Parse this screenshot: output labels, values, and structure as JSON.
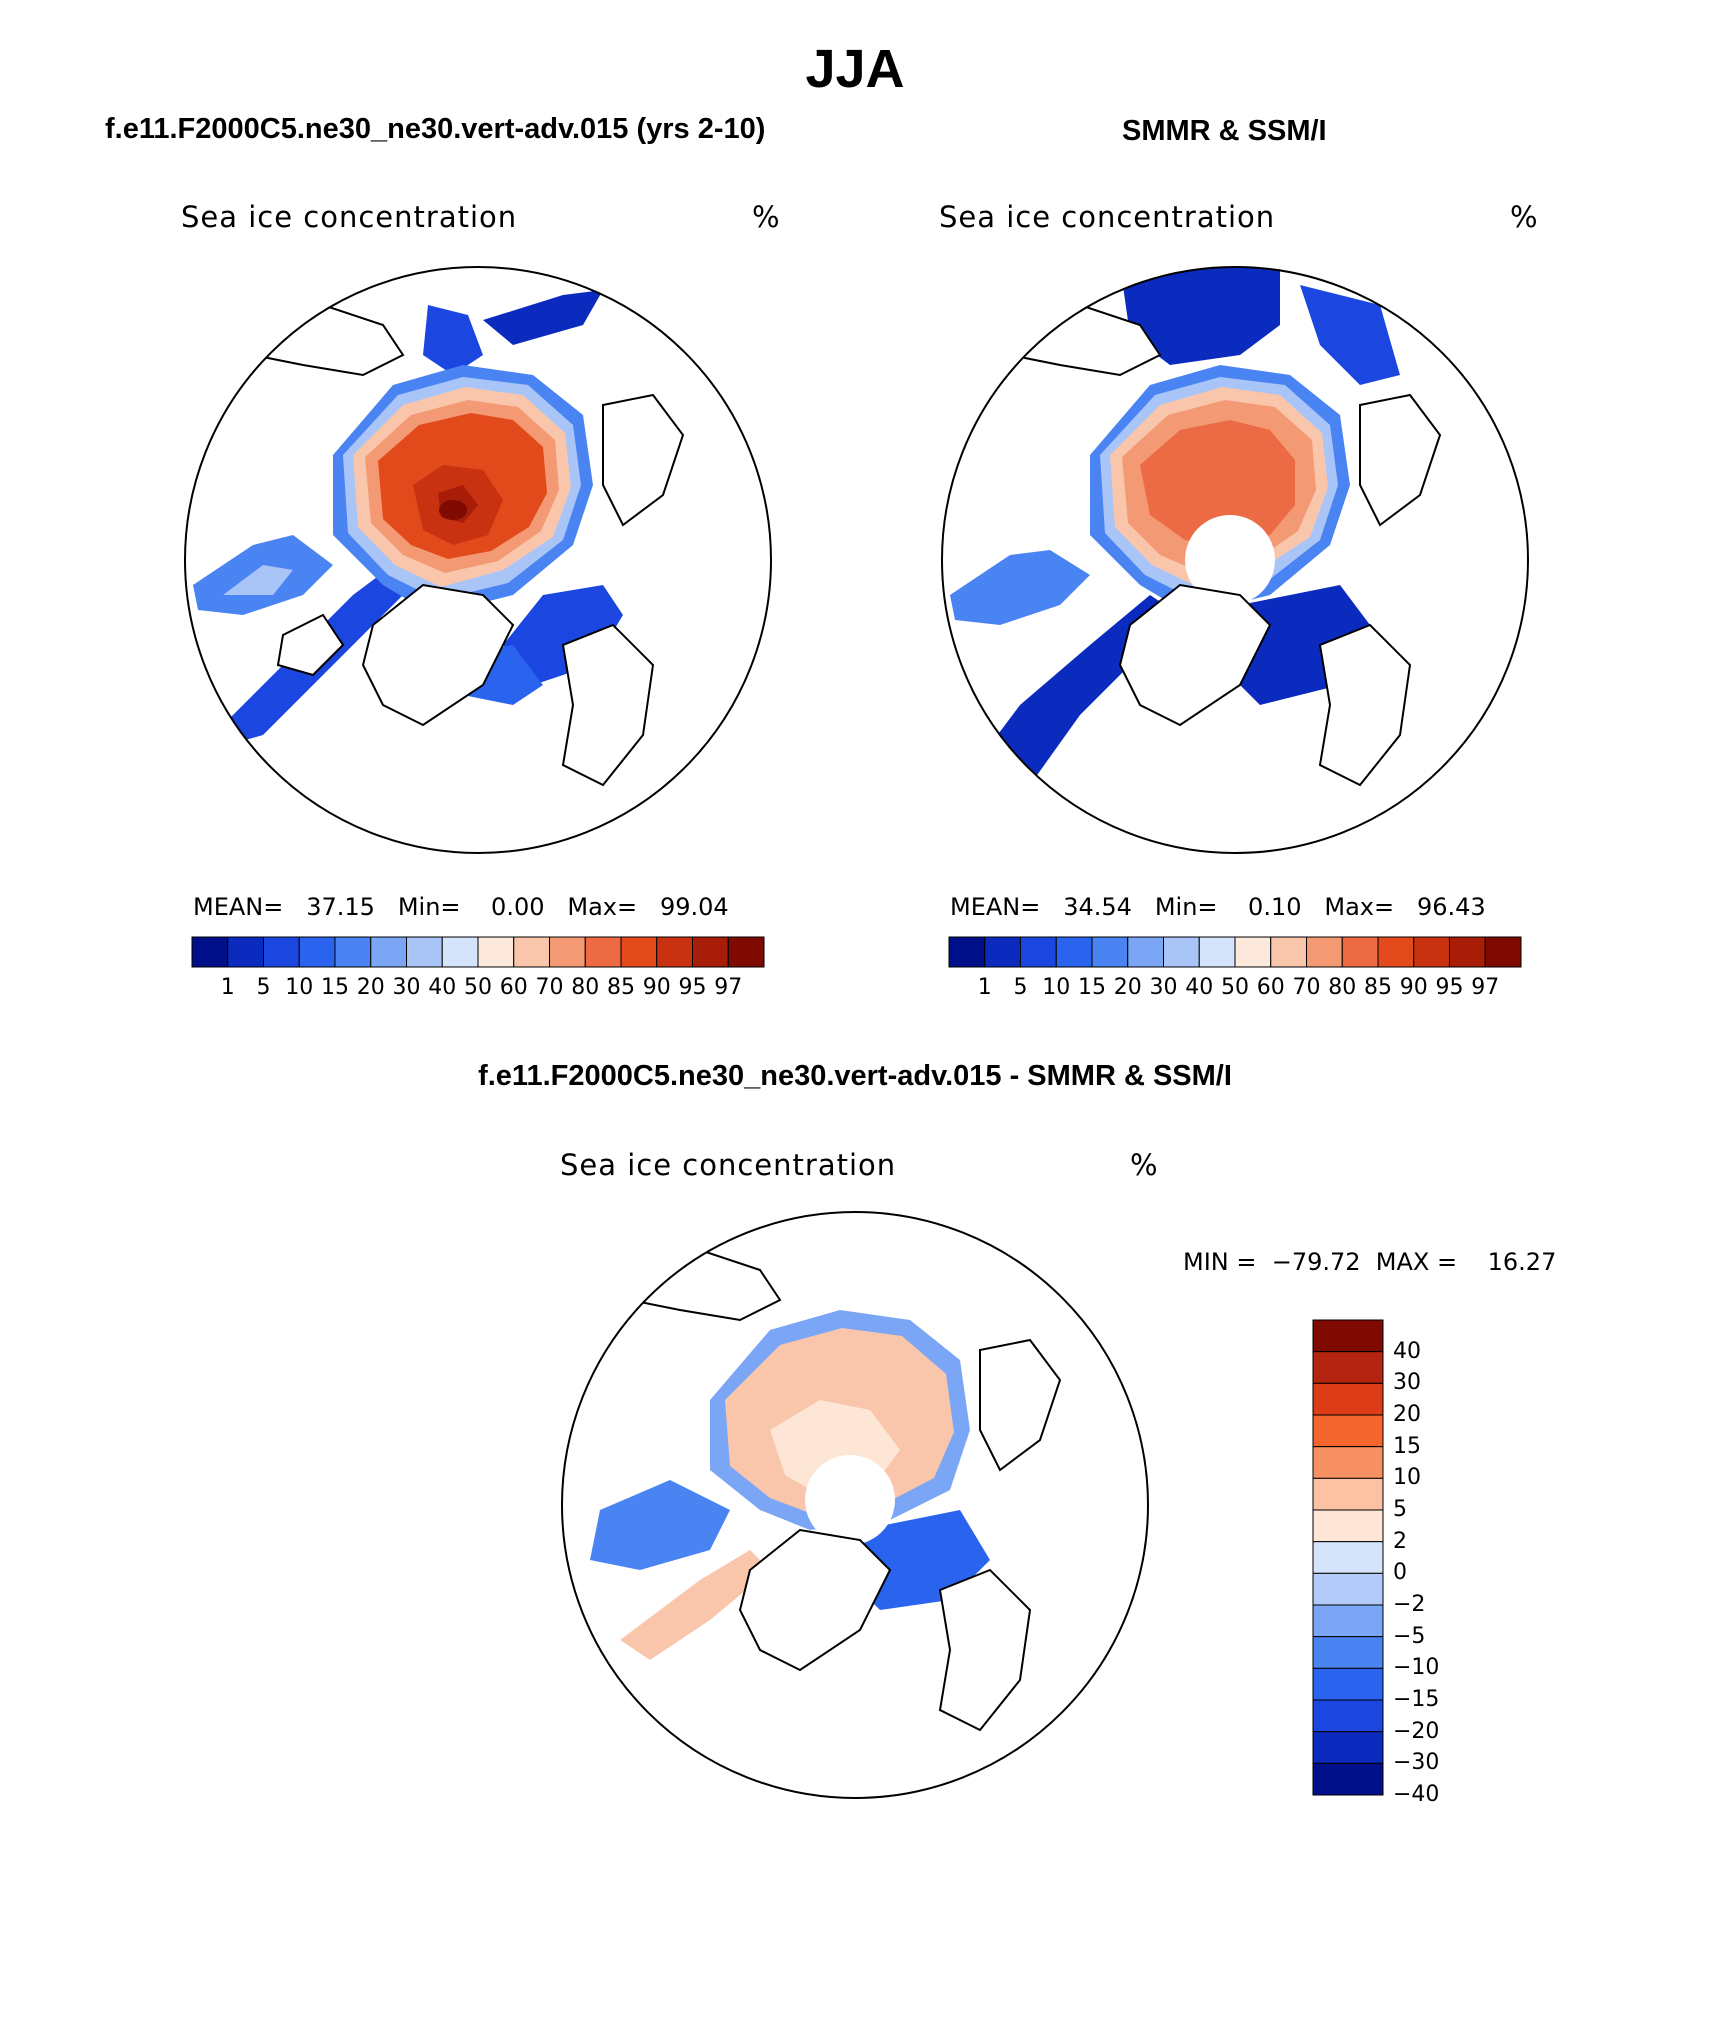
{
  "figure": {
    "season": "JJA",
    "colors": {
      "ice_palette": [
        "#00108a",
        "#0b2bbf",
        "#1b46e0",
        "#2a63ee",
        "#4a84f2",
        "#7ba6f5",
        "#a9c5f8",
        "#d4e5fb",
        "#fde9dc",
        "#f9c6ac",
        "#f39a74",
        "#ec6b44",
        "#e24a1c",
        "#c83210",
        "#a81d08",
        "#7e0a02"
      ],
      "diff_palette": [
        "#7e0a02",
        "#b32511",
        "#dd3d16",
        "#f4662e",
        "#f79062",
        "#fbc2a3",
        "#fde6d6",
        "#d4e5fb",
        "#b2cbf8",
        "#7ba6f5",
        "#4a84f2",
        "#2a63ee",
        "#1b46e0",
        "#0b2bbf",
        "#00108a"
      ]
    }
  },
  "panels": {
    "left": {
      "title": "f.e11.F2000C5.ne30_ne30.vert-adv.015 (yrs 2-10)",
      "variable": "Sea ice concentration",
      "units": "%",
      "stats": "MEAN=   37.15   Min=    0.00   Max=   99.04",
      "colorbar_ticks": [
        "1",
        "5",
        "10",
        "15",
        "20",
        "30",
        "40",
        "50",
        "60",
        "70",
        "80",
        "85",
        "90",
        "95",
        "97"
      ]
    },
    "right": {
      "title": "SMMR & SSM/I",
      "variable": "Sea ice concentration",
      "units": "%",
      "stats": "MEAN=   34.54   Min=    0.10   Max=   96.43",
      "colorbar_ticks": [
        "1",
        "5",
        "10",
        "15",
        "20",
        "30",
        "40",
        "50",
        "60",
        "70",
        "80",
        "85",
        "90",
        "95",
        "97"
      ]
    },
    "diff": {
      "title": "f.e11.F2000C5.ne30_ne30.vert-adv.015 - SMMR & SSM/I",
      "variable": "Sea ice concentration",
      "units": "%",
      "stats": "MIN =  −79.72  MAX =    16.27",
      "colorbar_ticks": [
        "40",
        "30",
        "20",
        "15",
        "10",
        "5",
        "2",
        "0",
        "−2",
        "−5",
        "−10",
        "−15",
        "−20",
        "−30",
        "−40"
      ]
    }
  }
}
